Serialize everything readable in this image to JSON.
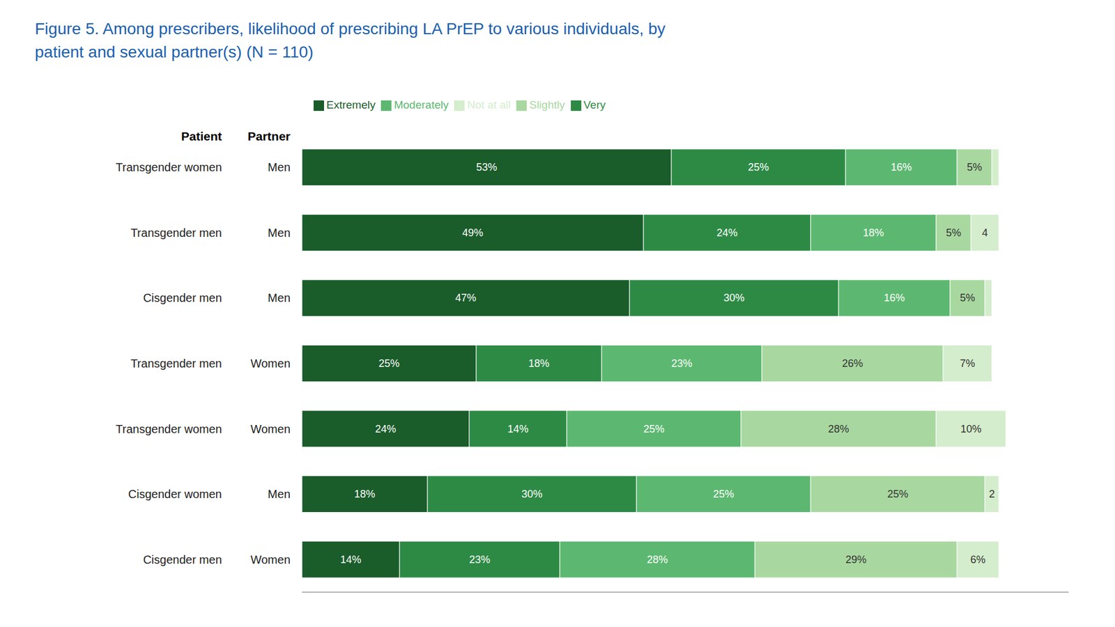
{
  "chart_data": {
    "type": "bar",
    "orientation": "horizontal",
    "stacked": true,
    "data_labels": true,
    "tick_labels": false,
    "grid": false,
    "legend": "upper left",
    "title": "Figure 5. Among prescribers, likelihood of prescribing LA PrEP to various individuals, by patient and sexual partner(s) (N = 110)",
    "annotations": [
      "Patient",
      "Partner"
    ],
    "categories": [
      [
        "Transgender women",
        "Men"
      ],
      [
        "Transgender men",
        "Men"
      ],
      [
        "Cisgender men",
        "Men"
      ],
      [
        "Transgender men",
        "Women"
      ],
      [
        "Transgender women",
        "Women"
      ],
      [
        "Cisgender women",
        "Men"
      ],
      [
        "Cisgender men",
        "Women"
      ]
    ],
    "xlim": [
      0,
      110
    ],
    "series": [
      {
        "name": "Extremely",
        "color": "#1a5c2a",
        "values": [
          53,
          49,
          47,
          25,
          24,
          18,
          14
        ],
        "value_labels": [
          "53%",
          "49%",
          "47%",
          "25%",
          "24%",
          "18%",
          "14%"
        ]
      },
      {
        "name": "Very",
        "color": "#2d8a45",
        "values": [
          25,
          24,
          30,
          18,
          14,
          30,
          23
        ],
        "value_labels": [
          "25%",
          "24%",
          "30%",
          "18%",
          "14%",
          "30%",
          "23%"
        ]
      },
      {
        "name": "Moderately",
        "color": "#5cb870",
        "values": [
          16,
          18,
          16,
          23,
          25,
          25,
          28
        ],
        "value_labels": [
          "16%",
          "18%",
          "16%",
          "23%",
          "25%",
          "25%",
          "28%"
        ]
      },
      {
        "name": "Slightly",
        "color": "#a8d8a0",
        "values": [
          5,
          5,
          5,
          26,
          28,
          25,
          29
        ],
        "value_labels": [
          "5%",
          "5%",
          "5%",
          "26%",
          "28%",
          "25%",
          "29%"
        ]
      },
      {
        "name": "Not at all",
        "color": "#d4edcc",
        "values": [
          1,
          4,
          1,
          7,
          10,
          2,
          6
        ],
        "value_labels": [
          null,
          "4",
          null,
          "7%",
          "10%",
          "2",
          "6%"
        ]
      }
    ]
  }
}
